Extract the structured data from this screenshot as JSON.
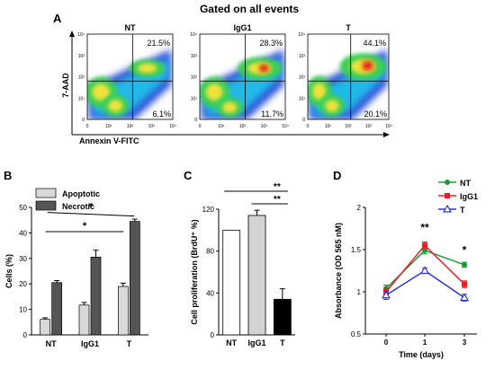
{
  "figure": {
    "panel_a": {
      "letter": "A",
      "header": "Gated on all events",
      "y_axis_label": "7-AAD",
      "x_axis_label": "Annexin V-FITC",
      "tick_labels": [
        "0",
        "10¹",
        "10²",
        "10³",
        "10⁴"
      ],
      "plots": [
        {
          "title": "NT",
          "upper_right_pct": "21.5%",
          "lower_right_pct": "6.1%"
        },
        {
          "title": "IgG1",
          "upper_right_pct": "28.3%",
          "lower_right_pct": "11.7%"
        },
        {
          "title": "T",
          "upper_right_pct": "44.1%",
          "lower_right_pct": "20.1%"
        }
      ]
    },
    "panel_b": {
      "letter": "B"
    },
    "panel_c": {
      "letter": "C"
    },
    "panel_d": {
      "letter": "D"
    }
  },
  "chart_data": [
    {
      "type": "bar",
      "panel": "B",
      "categories": [
        "NT",
        "IgG1",
        "T"
      ],
      "series": [
        {
          "name": "Apoptotic",
          "values": [
            6.1,
            11.7,
            19.0
          ],
          "errors": [
            0.6,
            1.0,
            1.3
          ],
          "color": "#d9d9d9"
        },
        {
          "name": "Necrotic",
          "values": [
            20.5,
            30.5,
            44.5
          ],
          "errors": [
            0.8,
            2.7,
            0.9
          ],
          "color": "#555555"
        }
      ],
      "xlabel": "",
      "ylabel": "Cells (%)",
      "ylim": [
        0,
        50
      ],
      "yticks": [
        0,
        10,
        20,
        30,
        40,
        50
      ],
      "legend": "top-left",
      "significance": [
        {
          "from": "NT",
          "to": "T",
          "label": "*"
        },
        {
          "from": "NT",
          "to": "T",
          "label": "*"
        }
      ]
    },
    {
      "type": "bar",
      "panel": "C",
      "categories": [
        "NT",
        "IgG1",
        "T"
      ],
      "values": [
        100,
        114,
        34
      ],
      "errors": [
        0,
        5,
        10
      ],
      "colors": [
        "#ffffff",
        "#d3d3d3",
        "#000000"
      ],
      "xlabel": "",
      "ylabel": "Cell proliferation (BrdU⁺ %)",
      "ylim": [
        0,
        120
      ],
      "yticks": [
        0,
        40,
        80,
        120
      ],
      "significance": [
        {
          "from": "NT",
          "to": "T",
          "label": "**"
        },
        {
          "from": "IgG1",
          "to": "T",
          "label": "**"
        }
      ]
    },
    {
      "type": "line",
      "panel": "D",
      "x": [
        0,
        1,
        3
      ],
      "xticks": [
        "0",
        "1",
        "3"
      ],
      "series": [
        {
          "name": "NT",
          "values": [
            1.04,
            1.49,
            1.32
          ],
          "errors": [
            0.04,
            0.04,
            0.03
          ],
          "color": "#1a9b35",
          "marker": "circle"
        },
        {
          "name": "IgG1",
          "values": [
            1.0,
            1.55,
            1.09
          ],
          "errors": [
            0.04,
            0.04,
            0.04
          ],
          "color": "#ee1c24",
          "marker": "square"
        },
        {
          "name": "T",
          "values": [
            0.96,
            1.25,
            0.93
          ],
          "errors": [
            0.05,
            0.03,
            0.04
          ],
          "color": "#2b35d6",
          "marker": "triangle-open"
        }
      ],
      "xlabel": "Time (days)",
      "ylabel": "Absorbance (OD 565 nM)",
      "ylim": [
        0.5,
        2.0
      ],
      "yticks": [
        0.5,
        1,
        1.5,
        2
      ],
      "legend": "top-right",
      "annotations": [
        {
          "x": 1,
          "label": "**"
        },
        {
          "x": 3,
          "label": "*"
        }
      ]
    }
  ]
}
